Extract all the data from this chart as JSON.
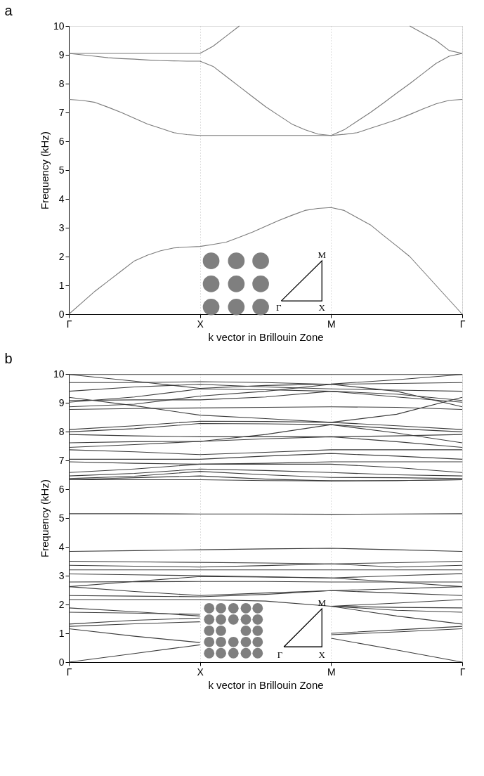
{
  "chart_data": [
    {
      "type": "line",
      "title": "a",
      "xlabel": "k vector in Brillouin Zone",
      "ylabel": "Frequency (kHz)",
      "color": "#7a7a7a",
      "categories": [
        "Γ",
        null,
        null,
        null,
        null,
        null,
        null,
        null,
        null,
        null,
        "X",
        null,
        null,
        null,
        null,
        null,
        null,
        null,
        null,
        null,
        "M",
        null,
        null,
        null,
        null,
        null,
        null,
        null,
        null,
        null,
        "Γ"
      ],
      "ylim": [
        0,
        10
      ],
      "yticks": [
        0,
        1,
        2,
        3,
        4,
        5,
        6,
        7,
        8,
        9,
        10
      ],
      "grid": "x",
      "line_style": "solid",
      "annotations": [
        "Γ",
        "X",
        "M"
      ],
      "series": [
        {
          "values": [
            0,
            0.4,
            0.8,
            1.15,
            1.5,
            1.85,
            2.05,
            2.2,
            2.3,
            2.33,
            2.35,
            2.42,
            2.5,
            2.67,
            2.85,
            3.05,
            3.25,
            3.43,
            3.6,
            3.67,
            3.7,
            3.6,
            3.35,
            3.1,
            2.73,
            2.37,
            2.0,
            1.5,
            1.0,
            0.5,
            0
          ]
        },
        {
          "values": [
            7.45,
            7.42,
            7.35,
            7.18,
            7.0,
            6.8,
            6.6,
            6.45,
            6.3,
            6.23,
            6.2,
            6.2,
            6.2,
            6.2,
            6.2,
            6.2,
            6.2,
            6.2,
            6.2,
            6.2,
            6.2,
            6.24,
            6.3,
            6.45,
            6.6,
            6.75,
            6.93,
            7.12,
            7.3,
            7.42,
            7.45
          ]
        },
        {
          "values": [
            9.05,
            9.0,
            8.95,
            8.9,
            8.87,
            8.85,
            8.82,
            8.8,
            8.79,
            8.78,
            8.78,
            8.6,
            8.25,
            7.9,
            7.55,
            7.2,
            6.9,
            6.6,
            6.4,
            6.25,
            6.2,
            6.4,
            6.7,
            7.0,
            7.33,
            7.67,
            8.0,
            8.35,
            8.7,
            8.95,
            9.05
          ]
        },
        {
          "values": [
            9.05,
            9.05,
            9.05,
            9.05,
            9.05,
            9.05,
            9.05,
            9.05,
            9.05,
            9.05,
            9.05,
            9.3,
            9.65,
            10,
            null,
            null,
            null,
            null,
            null,
            null,
            null,
            null,
            null,
            null,
            null,
            null,
            null,
            null,
            null,
            null,
            null
          ]
        },
        {
          "values": [
            null,
            null,
            null,
            null,
            null,
            null,
            null,
            null,
            null,
            null,
            null,
            null,
            null,
            null,
            null,
            null,
            null,
            null,
            null,
            null,
            null,
            null,
            null,
            null,
            null,
            null,
            10,
            9.75,
            9.5,
            9.15,
            9.05
          ]
        }
      ]
    },
    {
      "type": "line",
      "title": "b",
      "xlabel": "k vector in Brillouin Zone",
      "ylabel": "Frequency (kHz)",
      "color": "#3c3c3c",
      "categories": [
        "Γ",
        null,
        "X",
        null,
        "M",
        null,
        "Γ"
      ],
      "ylim": [
        0,
        10
      ],
      "yticks": [
        0,
        1,
        2,
        3,
        4,
        5,
        6,
        7,
        8,
        9,
        10
      ],
      "grid": "x",
      "line_style": "solid",
      "annotations": [
        "Γ",
        "X",
        "M"
      ],
      "series": [
        {
          "values": [
            9.98,
            9.98,
            9.98,
            9.98,
            9.98,
            9.98,
            9.98
          ]
        },
        {
          "values": [
            9.98,
            9.75,
            9.5,
            9.6,
            9.65,
            9.8,
            9.98
          ]
        },
        {
          "values": [
            9.7,
            9.7,
            9.73,
            9.7,
            9.64,
            9.67,
            9.7
          ]
        },
        {
          "values": [
            9.4,
            9.55,
            9.64,
            9.55,
            9.48,
            9.44,
            9.4
          ]
        },
        {
          "values": [
            9.02,
            9.2,
            9.48,
            9.45,
            9.4,
            9.2,
            9.02
          ]
        },
        {
          "values": [
            9.08,
            9.1,
            9.1,
            9.2,
            9.4,
            9.3,
            9.08
          ]
        },
        {
          "values": [
            8.86,
            8.95,
            9.23,
            9.4,
            9.64,
            9.4,
            8.86
          ]
        },
        {
          "values": [
            8.77,
            8.8,
            8.82,
            8.84,
            8.86,
            8.84,
            8.77
          ]
        },
        {
          "values": [
            9.19,
            8.9,
            8.57,
            8.45,
            8.32,
            8.6,
            9.19
          ]
        },
        {
          "values": [
            8.07,
            8.2,
            8.36,
            8.35,
            8.32,
            8.2,
            8.07
          ]
        },
        {
          "values": [
            7.99,
            8.1,
            8.28,
            8.27,
            8.24,
            8.1,
            7.99
          ]
        },
        {
          "values": [
            7.9,
            7.85,
            7.82,
            7.82,
            7.82,
            7.85,
            7.9
          ]
        },
        {
          "values": [
            7.61,
            7.65,
            7.66,
            7.9,
            8.24,
            7.95,
            7.61
          ]
        },
        {
          "values": [
            7.45,
            7.55,
            7.66,
            7.75,
            7.82,
            7.65,
            7.45
          ]
        },
        {
          "values": [
            7.37,
            7.3,
            7.2,
            7.28,
            7.37,
            7.37,
            7.37
          ]
        },
        {
          "values": [
            7.04,
            7.04,
            7.04,
            7.15,
            7.24,
            7.15,
            7.04
          ]
        },
        {
          "values": [
            6.95,
            6.9,
            6.87,
            6.9,
            6.95,
            6.95,
            6.95
          ]
        },
        {
          "values": [
            6.58,
            6.7,
            6.87,
            6.87,
            6.87,
            6.75,
            6.58
          ]
        },
        {
          "values": [
            6.46,
            6.55,
            6.7,
            6.65,
            6.58,
            6.5,
            6.46
          ]
        },
        {
          "values": [
            6.37,
            6.45,
            6.62,
            6.5,
            6.41,
            6.4,
            6.37
          ]
        },
        {
          "values": [
            6.33,
            6.4,
            6.46,
            6.35,
            6.29,
            6.3,
            6.33
          ]
        },
        {
          "values": [
            6.33,
            6.33,
            6.33,
            6.3,
            6.29,
            6.3,
            6.33
          ]
        },
        {
          "values": [
            5.15,
            5.15,
            5.14,
            5.14,
            5.13,
            5.14,
            5.15
          ]
        },
        {
          "values": [
            3.84,
            3.87,
            3.9,
            3.93,
            3.95,
            3.9,
            3.84
          ]
        },
        {
          "values": [
            3.5,
            3.48,
            3.46,
            3.44,
            3.41,
            3.45,
            3.5
          ]
        },
        {
          "values": [
            3.36,
            3.33,
            3.3,
            3.35,
            3.41,
            3.3,
            3.36
          ]
        },
        {
          "values": [
            3.2,
            3.2,
            3.2,
            3.2,
            3.2,
            3.2,
            3.2
          ]
        },
        {
          "values": [
            3.06,
            3.03,
            3.0,
            2.96,
            2.92,
            3.0,
            3.07
          ]
        },
        {
          "values": [
            2.78,
            2.79,
            2.8,
            2.8,
            2.78,
            2.78,
            2.78
          ]
        },
        {
          "values": [
            2.62,
            2.45,
            2.31,
            2.4,
            2.48,
            2.55,
            2.62
          ]
        },
        {
          "values": [
            2.62,
            2.8,
            2.97,
            2.95,
            2.92,
            2.78,
            2.62
          ]
        },
        {
          "values": [
            2.31,
            2.29,
            2.27,
            2.35,
            2.48,
            2.4,
            2.31
          ]
        },
        {
          "values": [
            2.17,
            2.17,
            2.17,
            2.12,
            1.94,
            2.05,
            2.17
          ]
        },
        {
          "values": [
            1.88,
            1.75,
            1.6,
            null,
            null,
            null,
            null
          ]
        },
        {
          "values": [
            null,
            null,
            null,
            null,
            1.94,
            1.9,
            1.88
          ]
        },
        {
          "values": [
            1.73,
            1.7,
            1.66,
            null,
            null,
            null,
            null
          ]
        },
        {
          "values": [
            null,
            null,
            null,
            null,
            1.94,
            1.8,
            1.73
          ]
        },
        {
          "values": [
            1.32,
            1.45,
            1.53,
            null,
            null,
            null,
            null
          ]
        },
        {
          "values": [
            null,
            null,
            null,
            null,
            1.94,
            1.6,
            1.32
          ]
        },
        {
          "values": [
            1.24,
            1.33,
            1.4,
            null,
            null,
            null,
            null
          ]
        },
        {
          "values": [
            null,
            null,
            null,
            null,
            1.0,
            1.12,
            1.24
          ]
        },
        {
          "values": [
            1.16,
            0.9,
            0.68,
            null,
            null,
            null,
            null
          ]
        },
        {
          "values": [
            null,
            null,
            null,
            null,
            0.83,
            0.42,
            0
          ]
        },
        {
          "values": [
            0,
            0.3,
            0.6,
            null,
            null,
            null,
            null
          ]
        },
        {
          "values": [
            null,
            null,
            null,
            null,
            0.95,
            1.05,
            1.16
          ]
        }
      ]
    }
  ]
}
